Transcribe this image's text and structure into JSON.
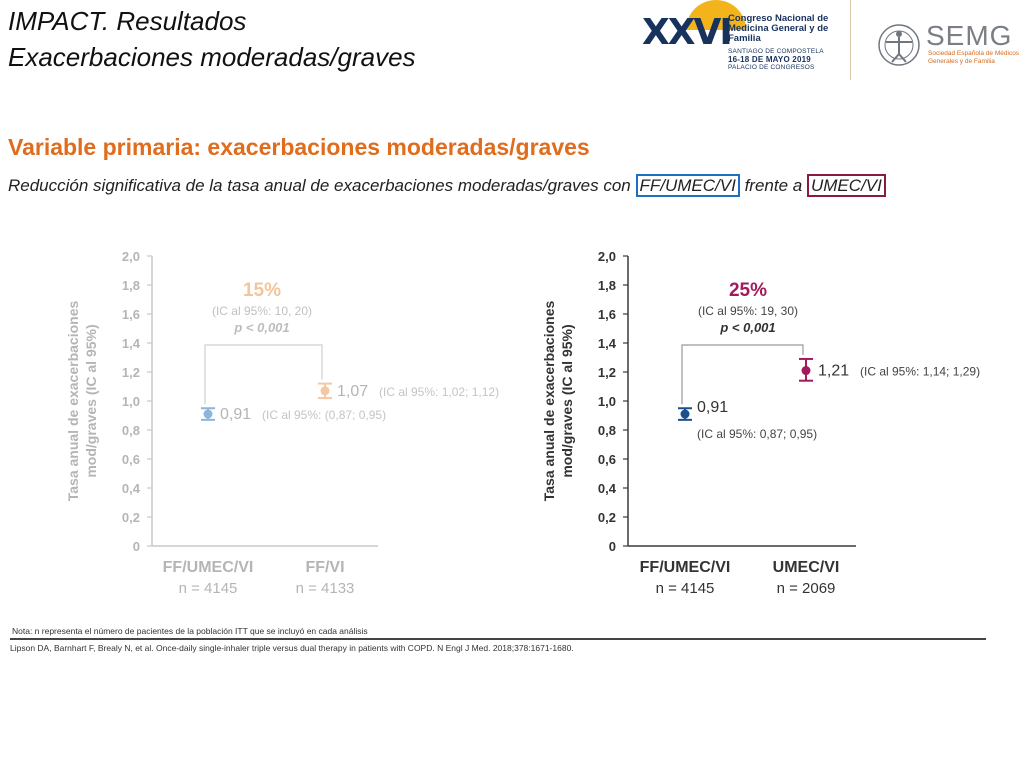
{
  "slide": {
    "title_line1": "IMPACT. Resultados",
    "title_line2": "Exacerbaciones moderadas/graves",
    "heading": "Variable primaria: exacerbaciones moderadas/graves",
    "subtitle_pre": "Reducción significativa de la tasa anual de exacerbaciones moderadas/graves con ",
    "subtitle_blue": "FF/UMEC/VI",
    "subtitle_mid": " frente a ",
    "subtitle_red": "UMEC/VI",
    "note": "Nota: n representa el número de pacientes de la población ITT que se incluyó en cada análisis",
    "reference": "Lipson DA, Barnhart F, Brealy N, et al. Once-daily single-inhaler triple versus dual therapy in patients with COPD. N Engl J Med. 2018;378:1671-1680."
  },
  "logos": {
    "congress_number": "XXVI",
    "congress_name": "Congreso Nacional de Medicina General y de Familia",
    "congress_city": "SANTIAGO DE COMPOSTELA",
    "congress_dates": "16-18 DE MAYO 2019",
    "congress_venue": "PALACIO DE CONGRESOS",
    "semg_name": "SEMG",
    "semg_full": "Sociedad Española de Médicos Generales y de Familia"
  },
  "colors": {
    "axis": "#3a3a3a",
    "faded_axis": "#c8c8c8",
    "faded_text": "#b5b5b5",
    "faded_pct": "#f4c49a",
    "blue_light": "#8db4d9",
    "orange_light": "#f6c7a4",
    "blue_dark": "#1d4f8c",
    "crimson": "#a3195b",
    "bracket": "#9a9a9a"
  },
  "chart_data": [
    {
      "type": "scatter",
      "ylabel": "Tasa anual de exacerbaciones mod/graves (IC al 95%)",
      "ylim": [
        0,
        2.0
      ],
      "yticks": [
        "0",
        "0,2",
        "0,4",
        "0,6",
        "0,8",
        "1,0",
        "1,2",
        "1,4",
        "1,6",
        "1,8",
        "2,0"
      ],
      "faded": true,
      "categories": [
        "FF/UMEC/VI",
        "FF/VI"
      ],
      "n_labels": [
        "n = 4145",
        "n = 4133"
      ],
      "points": [
        {
          "value": 0.91,
          "ci": [
            0.87,
            0.95
          ],
          "value_label": "0,91",
          "ci_label": "(IC al 95%: (0,87; 0,95)",
          "color": "#8db4d9"
        },
        {
          "value": 1.07,
          "ci": [
            1.02,
            1.12
          ],
          "value_label": "1,07",
          "ci_label": "(IC al 95%: 1,02; 1,12)",
          "color": "#f6c7a4"
        }
      ],
      "reduction": "15%",
      "reduction_ci": "(IC al 95%: 10, 20)",
      "p_value": "p < 0,001"
    },
    {
      "type": "scatter",
      "ylabel": "Tasa anual de exacerbaciones mod/graves (IC al 95%)",
      "ylim": [
        0,
        2.0
      ],
      "yticks": [
        "0",
        "0,2",
        "0,4",
        "0,6",
        "0,8",
        "1,0",
        "1,2",
        "1,4",
        "1,6",
        "1,8",
        "2,0"
      ],
      "faded": false,
      "categories": [
        "FF/UMEC/VI",
        "UMEC/VI"
      ],
      "n_labels": [
        "n = 4145",
        "n = 2069"
      ],
      "points": [
        {
          "value": 0.91,
          "ci": [
            0.87,
            0.95
          ],
          "value_label": "0,91",
          "ci_label": "(IC al 95%: 0,87; 0,95)",
          "color": "#1d4f8c"
        },
        {
          "value": 1.21,
          "ci": [
            1.14,
            1.29
          ],
          "value_label": "1,21",
          "ci_label": "(IC al 95%: 1,14; 1,29)",
          "color": "#a3195b"
        }
      ],
      "reduction": "25%",
      "reduction_ci": "(IC al 95%: 19, 30)",
      "p_value": "p < 0,001"
    }
  ]
}
